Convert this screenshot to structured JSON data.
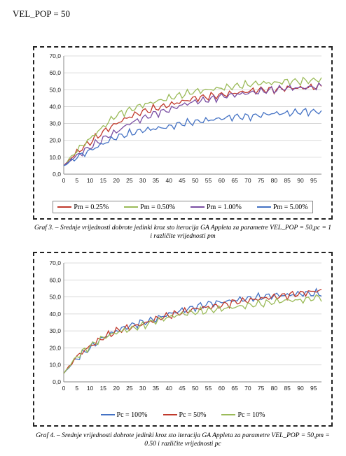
{
  "page": {
    "heading": "VEL_POP = 50"
  },
  "chart_data": [
    {
      "type": "line",
      "x_start": 0,
      "x_step": 1,
      "x_count": 99,
      "xticks": [
        "0",
        "5",
        "10",
        "15",
        "20",
        "25",
        "30",
        "35",
        "40",
        "45",
        "50",
        "55",
        "60",
        "65",
        "70",
        "75",
        "80",
        "85",
        "90",
        "95"
      ],
      "ylim": [
        0,
        70
      ],
      "yticks": [
        "0,0",
        "10,0",
        "20,0",
        "30,0",
        "40,0",
        "50,0",
        "60,0",
        "70,0"
      ],
      "grid": true,
      "legend_position": "bottom",
      "caption": "Graf 3. – Srednje vrijednosti dobrote jedinki kroz sto iteracija GA Appleta za parametre VEL_POP = 50,pc = 1 i različite vrijednosti pm",
      "series": [
        {
          "name": "Pm = 0.25%",
          "color": "#c0392b",
          "anchors": [
            [
              0,
              5
            ],
            [
              5,
              13
            ],
            [
              10,
              19
            ],
            [
              15,
              25
            ],
            [
              20,
              30
            ],
            [
              25,
              34
            ],
            [
              30,
              37
            ],
            [
              35,
              39
            ],
            [
              40,
              41
            ],
            [
              45,
              43
            ],
            [
              50,
              45
            ],
            [
              55,
              46
            ],
            [
              60,
              47
            ],
            [
              65,
              48
            ],
            [
              70,
              49
            ],
            [
              75,
              50
            ],
            [
              80,
              50
            ],
            [
              85,
              51
            ],
            [
              90,
              51
            ],
            [
              98,
              52
            ]
          ]
        },
        {
          "name": "Pm = 0.50%",
          "color": "#9bbb59",
          "anchors": [
            [
              0,
              5
            ],
            [
              5,
              14
            ],
            [
              10,
              21
            ],
            [
              15,
              28
            ],
            [
              20,
              35
            ],
            [
              25,
              38
            ],
            [
              30,
              41
            ],
            [
              35,
              43
            ],
            [
              40,
              45
            ],
            [
              45,
              47
            ],
            [
              50,
              49
            ],
            [
              55,
              50
            ],
            [
              60,
              51
            ],
            [
              65,
              52
            ],
            [
              70,
              53
            ],
            [
              75,
              54
            ],
            [
              80,
              54
            ],
            [
              85,
              55
            ],
            [
              90,
              55
            ],
            [
              98,
              56
            ]
          ]
        },
        {
          "name": "Pm = 1.00%",
          "color": "#7a4ea3",
          "anchors": [
            [
              0,
              5
            ],
            [
              5,
              11
            ],
            [
              10,
              16
            ],
            [
              15,
              21
            ],
            [
              20,
              25
            ],
            [
              25,
              30
            ],
            [
              30,
              33
            ],
            [
              35,
              36
            ],
            [
              40,
              38
            ],
            [
              45,
              41
            ],
            [
              50,
              43
            ],
            [
              55,
              44
            ],
            [
              60,
              46
            ],
            [
              65,
              47
            ],
            [
              70,
              48
            ],
            [
              75,
              49
            ],
            [
              80,
              50
            ],
            [
              85,
              51
            ],
            [
              90,
              51
            ],
            [
              98,
              52
            ]
          ]
        },
        {
          "name": "Pm = 5.00%",
          "color": "#4472c4",
          "anchors": [
            [
              0,
              5
            ],
            [
              5,
              10
            ],
            [
              10,
              14
            ],
            [
              15,
              18
            ],
            [
              20,
              22
            ],
            [
              25,
              24
            ],
            [
              30,
              26
            ],
            [
              35,
              27
            ],
            [
              40,
              28
            ],
            [
              45,
              30
            ],
            [
              50,
              31
            ],
            [
              55,
              32
            ],
            [
              60,
              33
            ],
            [
              65,
              34
            ],
            [
              70,
              34
            ],
            [
              75,
              35
            ],
            [
              80,
              36
            ],
            [
              85,
              36
            ],
            [
              90,
              37
            ],
            [
              98,
              37
            ]
          ]
        }
      ]
    },
    {
      "type": "line",
      "x_start": 0,
      "x_step": 1,
      "x_count": 99,
      "xticks": [
        "0",
        "5",
        "10",
        "15",
        "20",
        "25",
        "30",
        "35",
        "40",
        "45",
        "50",
        "55",
        "60",
        "65",
        "70",
        "75",
        "80",
        "85",
        "90",
        "95"
      ],
      "ylim": [
        0,
        70
      ],
      "yticks": [
        "0,0",
        "10,0",
        "20,0",
        "30,0",
        "40,0",
        "50,0",
        "60,0",
        "70,0"
      ],
      "grid": true,
      "legend_position": "bottom",
      "caption": "Graf 4. – Srednje vrijednosti dobrote jedinki kroz sto iteracija GA Appleta za parametre VEL_POP = 50,pm = 0.50 i različite vrijednosti pc",
      "series": [
        {
          "name": "Pc = 100%",
          "color": "#4472c4",
          "anchors": [
            [
              0,
              5
            ],
            [
              5,
              14
            ],
            [
              10,
              20
            ],
            [
              15,
              26
            ],
            [
              20,
              30
            ],
            [
              25,
              33
            ],
            [
              30,
              35
            ],
            [
              35,
              37
            ],
            [
              40,
              40
            ],
            [
              45,
              42
            ],
            [
              50,
              44
            ],
            [
              55,
              46
            ],
            [
              60,
              47
            ],
            [
              65,
              48
            ],
            [
              70,
              49
            ],
            [
              75,
              50
            ],
            [
              80,
              51
            ],
            [
              85,
              51
            ],
            [
              90,
              52
            ],
            [
              98,
              52
            ]
          ]
        },
        {
          "name": "Pc = 50%",
          "color": "#c0392b",
          "anchors": [
            [
              0,
              5
            ],
            [
              5,
              15
            ],
            [
              10,
              21
            ],
            [
              15,
              26
            ],
            [
              20,
              30
            ],
            [
              25,
              32
            ],
            [
              30,
              34
            ],
            [
              35,
              37
            ],
            [
              40,
              39
            ],
            [
              45,
              41
            ],
            [
              50,
              43
            ],
            [
              55,
              44
            ],
            [
              60,
              45
            ],
            [
              65,
              47
            ],
            [
              70,
              48
            ],
            [
              75,
              49
            ],
            [
              80,
              50
            ],
            [
              85,
              51
            ],
            [
              90,
              52
            ],
            [
              98,
              54
            ]
          ]
        },
        {
          "name": "Pc = 10%",
          "color": "#9bbb59",
          "anchors": [
            [
              0,
              5
            ],
            [
              5,
              15
            ],
            [
              10,
              21
            ],
            [
              15,
              26
            ],
            [
              20,
              29
            ],
            [
              25,
              31
            ],
            [
              30,
              33
            ],
            [
              35,
              36
            ],
            [
              40,
              38
            ],
            [
              45,
              40
            ],
            [
              50,
              41
            ],
            [
              55,
              42
            ],
            [
              60,
              43
            ],
            [
              65,
              44
            ],
            [
              70,
              45
            ],
            [
              75,
              46
            ],
            [
              80,
              47
            ],
            [
              85,
              48
            ],
            [
              90,
              48
            ],
            [
              98,
              50
            ]
          ]
        }
      ]
    }
  ]
}
